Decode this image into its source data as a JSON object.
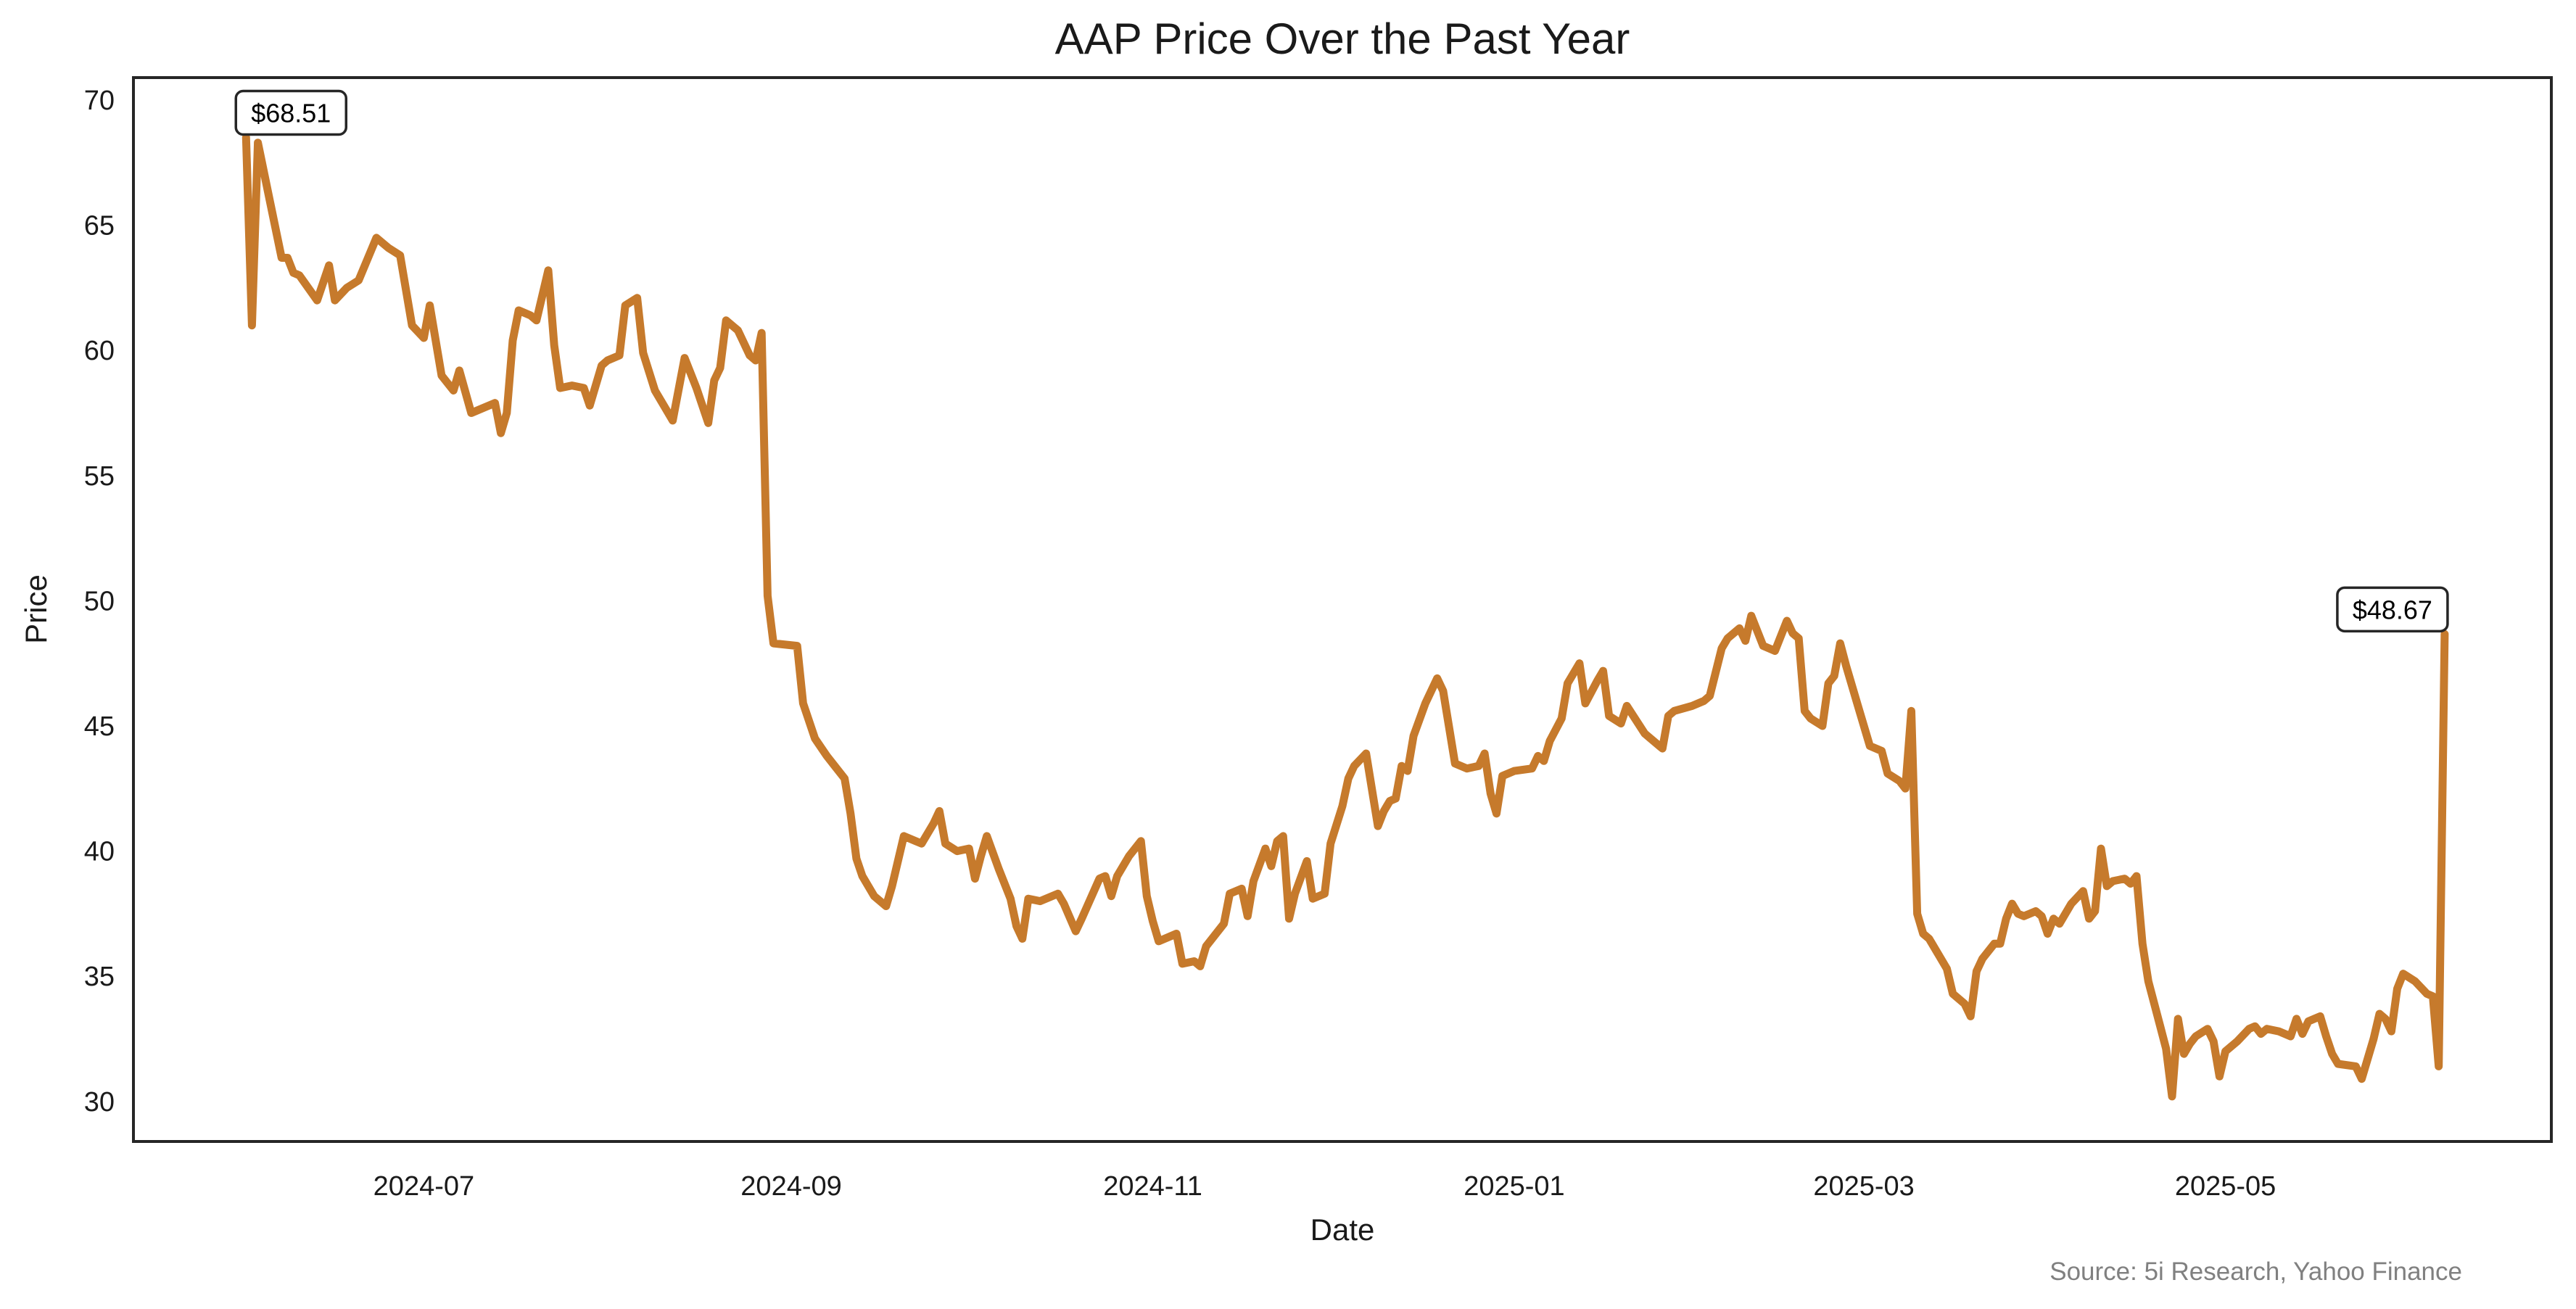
{
  "chart_data": {
    "type": "line",
    "title": "AAP Price Over the Past Year",
    "xlabel": "Date",
    "ylabel": "Price",
    "source": "Source: 5i Research, Yahoo Finance",
    "xlim": [
      "2024-05-13",
      "2025-06-25"
    ],
    "ylim": [
      28.4,
      70.9
    ],
    "x_ticks": [
      {
        "date": "2024-07-01",
        "label": "2024-07"
      },
      {
        "date": "2024-09-01",
        "label": "2024-09"
      },
      {
        "date": "2024-11-01",
        "label": "2024-11"
      },
      {
        "date": "2025-01-01",
        "label": "2025-01"
      },
      {
        "date": "2025-03-01",
        "label": "2025-03"
      },
      {
        "date": "2025-05-01",
        "label": "2025-05"
      }
    ],
    "y_ticks": [
      30,
      35,
      40,
      45,
      50,
      55,
      60,
      65,
      70
    ],
    "grid": false,
    "line_color": "#c67a2c",
    "annotations": [
      {
        "date": "2024-06-01",
        "value": 68.51,
        "label": "$68.51",
        "align": "left"
      },
      {
        "date": "2025-06-07",
        "value": 48.67,
        "label": "$48.67",
        "align": "right"
      }
    ],
    "series": [
      {
        "points": [
          [
            "2024-06-01",
            68.51
          ],
          [
            "2024-06-02",
            61.0
          ],
          [
            "2024-06-03",
            68.3
          ],
          [
            "2024-06-05",
            66.0
          ],
          [
            "2024-06-07",
            63.7
          ],
          [
            "2024-06-08",
            63.7
          ],
          [
            "2024-06-09",
            63.1
          ],
          [
            "2024-06-10",
            63.0
          ],
          [
            "2024-06-13",
            62.0
          ],
          [
            "2024-06-15",
            63.4
          ],
          [
            "2024-06-16",
            62.0
          ],
          [
            "2024-06-18",
            62.5
          ],
          [
            "2024-06-20",
            62.8
          ],
          [
            "2024-06-23",
            64.5
          ],
          [
            "2024-06-25",
            64.1
          ],
          [
            "2024-06-27",
            63.8
          ],
          [
            "2024-06-29",
            61.0
          ],
          [
            "2024-07-01",
            60.5
          ],
          [
            "2024-07-02",
            61.8
          ],
          [
            "2024-07-04",
            59.0
          ],
          [
            "2024-07-06",
            58.4
          ],
          [
            "2024-07-07",
            59.2
          ],
          [
            "2024-07-09",
            57.5
          ],
          [
            "2024-07-13",
            57.9
          ],
          [
            "2024-07-14",
            56.7
          ],
          [
            "2024-07-15",
            57.5
          ],
          [
            "2024-07-16",
            60.4
          ],
          [
            "2024-07-17",
            61.6
          ],
          [
            "2024-07-19",
            61.4
          ],
          [
            "2024-07-20",
            61.2
          ],
          [
            "2024-07-22",
            63.2
          ],
          [
            "2024-07-23",
            60.2
          ],
          [
            "2024-07-24",
            58.5
          ],
          [
            "2024-07-26",
            58.6
          ],
          [
            "2024-07-28",
            58.5
          ],
          [
            "2024-07-29",
            57.8
          ],
          [
            "2024-07-31",
            59.4
          ],
          [
            "2024-08-01",
            59.6
          ],
          [
            "2024-08-03",
            59.8
          ],
          [
            "2024-08-04",
            61.8
          ],
          [
            "2024-08-06",
            62.1
          ],
          [
            "2024-08-07",
            59.9
          ],
          [
            "2024-08-09",
            58.4
          ],
          [
            "2024-08-12",
            57.2
          ],
          [
            "2024-08-14",
            59.7
          ],
          [
            "2024-08-16",
            58.5
          ],
          [
            "2024-08-18",
            57.1
          ],
          [
            "2024-08-19",
            58.8
          ],
          [
            "2024-08-20",
            59.3
          ],
          [
            "2024-08-21",
            61.2
          ],
          [
            "2024-08-23",
            60.8
          ],
          [
            "2024-08-25",
            59.8
          ],
          [
            "2024-08-26",
            59.6
          ],
          [
            "2024-08-27",
            60.7
          ],
          [
            "2024-08-28",
            50.2
          ],
          [
            "2024-08-29",
            48.3
          ],
          [
            "2024-09-02",
            48.2
          ],
          [
            "2024-09-03",
            45.9
          ],
          [
            "2024-09-05",
            44.5
          ],
          [
            "2024-09-07",
            43.8
          ],
          [
            "2024-09-10",
            42.9
          ],
          [
            "2024-09-11",
            41.5
          ],
          [
            "2024-09-12",
            39.7
          ],
          [
            "2024-09-13",
            39.0
          ],
          [
            "2024-09-15",
            38.2
          ],
          [
            "2024-09-17",
            37.8
          ],
          [
            "2024-09-18",
            38.6
          ],
          [
            "2024-09-20",
            40.6
          ],
          [
            "2024-09-22",
            40.4
          ],
          [
            "2024-09-23",
            40.3
          ],
          [
            "2024-09-25",
            41.1
          ],
          [
            "2024-09-26",
            41.6
          ],
          [
            "2024-09-27",
            40.3
          ],
          [
            "2024-09-29",
            40.0
          ],
          [
            "2024-10-01",
            40.1
          ],
          [
            "2024-10-02",
            38.9
          ],
          [
            "2024-10-03",
            39.8
          ],
          [
            "2024-10-04",
            40.6
          ],
          [
            "2024-10-06",
            39.3
          ],
          [
            "2024-10-08",
            38.1
          ],
          [
            "2024-10-09",
            37.0
          ],
          [
            "2024-10-10",
            36.5
          ],
          [
            "2024-10-11",
            38.1
          ],
          [
            "2024-10-13",
            38.0
          ],
          [
            "2024-10-16",
            38.3
          ],
          [
            "2024-10-17",
            37.9
          ],
          [
            "2024-10-19",
            36.8
          ],
          [
            "2024-10-20",
            37.3
          ],
          [
            "2024-10-23",
            38.9
          ],
          [
            "2024-10-24",
            39.0
          ],
          [
            "2024-10-25",
            38.2
          ],
          [
            "2024-10-26",
            39.0
          ],
          [
            "2024-10-28",
            39.8
          ],
          [
            "2024-10-30",
            40.4
          ],
          [
            "2024-10-31",
            38.2
          ],
          [
            "2024-11-01",
            37.2
          ],
          [
            "2024-11-02",
            36.4
          ],
          [
            "2024-11-05",
            36.7
          ],
          [
            "2024-11-06",
            35.5
          ],
          [
            "2024-11-08",
            35.6
          ],
          [
            "2024-11-09",
            35.4
          ],
          [
            "2024-11-10",
            36.2
          ],
          [
            "2024-11-13",
            37.1
          ],
          [
            "2024-11-14",
            38.3
          ],
          [
            "2024-11-16",
            38.5
          ],
          [
            "2024-11-17",
            37.4
          ],
          [
            "2024-11-18",
            38.8
          ],
          [
            "2024-11-20",
            40.1
          ],
          [
            "2024-11-21",
            39.4
          ],
          [
            "2024-11-22",
            40.4
          ],
          [
            "2024-11-23",
            40.6
          ],
          [
            "2024-11-24",
            37.3
          ],
          [
            "2024-11-25",
            38.3
          ],
          [
            "2024-11-27",
            39.6
          ],
          [
            "2024-11-28",
            38.1
          ],
          [
            "2024-11-30",
            38.3
          ],
          [
            "2024-12-01",
            40.3
          ],
          [
            "2024-12-03",
            41.8
          ],
          [
            "2024-12-04",
            42.9
          ],
          [
            "2024-12-05",
            43.4
          ],
          [
            "2024-12-07",
            43.9
          ],
          [
            "2024-12-09",
            41.0
          ],
          [
            "2024-12-10",
            41.6
          ],
          [
            "2024-12-11",
            42.0
          ],
          [
            "2024-12-12",
            42.1
          ],
          [
            "2024-12-13",
            43.4
          ],
          [
            "2024-12-14",
            43.2
          ],
          [
            "2024-12-15",
            44.6
          ],
          [
            "2024-12-17",
            45.9
          ],
          [
            "2024-12-19",
            46.9
          ],
          [
            "2024-12-20",
            46.4
          ],
          [
            "2024-12-22",
            43.5
          ],
          [
            "2024-12-24",
            43.3
          ],
          [
            "2024-12-26",
            43.4
          ],
          [
            "2024-12-27",
            43.9
          ],
          [
            "2024-12-28",
            42.3
          ],
          [
            "2024-12-29",
            41.5
          ],
          [
            "2024-12-30",
            43.0
          ],
          [
            "2025-01-01",
            43.2
          ],
          [
            "2025-01-04",
            43.3
          ],
          [
            "2025-01-05",
            43.8
          ],
          [
            "2025-01-06",
            43.6
          ],
          [
            "2025-01-07",
            44.4
          ],
          [
            "2025-01-09",
            45.3
          ],
          [
            "2025-01-10",
            46.7
          ],
          [
            "2025-01-12",
            47.5
          ],
          [
            "2025-01-13",
            45.9
          ],
          [
            "2025-01-15",
            46.8
          ],
          [
            "2025-01-16",
            47.2
          ],
          [
            "2025-01-17",
            45.4
          ],
          [
            "2025-01-19",
            45.1
          ],
          [
            "2025-01-20",
            45.8
          ],
          [
            "2025-01-23",
            44.7
          ],
          [
            "2025-01-24",
            44.5
          ],
          [
            "2025-01-26",
            44.1
          ],
          [
            "2025-01-27",
            45.4
          ],
          [
            "2025-01-28",
            45.6
          ],
          [
            "2025-01-31",
            45.8
          ],
          [
            "2025-02-02",
            46.0
          ],
          [
            "2025-02-03",
            46.2
          ],
          [
            "2025-02-05",
            48.1
          ],
          [
            "2025-02-06",
            48.5
          ],
          [
            "2025-02-08",
            48.9
          ],
          [
            "2025-02-09",
            48.4
          ],
          [
            "2025-02-10",
            49.4
          ],
          [
            "2025-02-12",
            48.2
          ],
          [
            "2025-02-14",
            48.0
          ],
          [
            "2025-02-16",
            49.2
          ],
          [
            "2025-02-17",
            48.7
          ],
          [
            "2025-02-18",
            48.5
          ],
          [
            "2025-02-19",
            45.6
          ],
          [
            "2025-02-20",
            45.3
          ],
          [
            "2025-02-22",
            45.0
          ],
          [
            "2025-02-23",
            46.7
          ],
          [
            "2025-02-24",
            47.0
          ],
          [
            "2025-02-25",
            48.3
          ],
          [
            "2025-02-26",
            47.4
          ],
          [
            "2025-02-28",
            45.8
          ],
          [
            "2025-03-02",
            44.2
          ],
          [
            "2025-03-04",
            44.0
          ],
          [
            "2025-03-05",
            43.1
          ],
          [
            "2025-03-07",
            42.8
          ],
          [
            "2025-03-08",
            42.5
          ],
          [
            "2025-03-09",
            45.6
          ],
          [
            "2025-03-10",
            37.5
          ],
          [
            "2025-03-11",
            36.7
          ],
          [
            "2025-03-12",
            36.5
          ],
          [
            "2025-03-15",
            35.3
          ],
          [
            "2025-03-16",
            34.3
          ],
          [
            "2025-03-18",
            33.9
          ],
          [
            "2025-03-19",
            33.4
          ],
          [
            "2025-03-20",
            35.2
          ],
          [
            "2025-03-21",
            35.7
          ],
          [
            "2025-03-23",
            36.3
          ],
          [
            "2025-03-24",
            36.3
          ],
          [
            "2025-03-25",
            37.3
          ],
          [
            "2025-03-26",
            37.9
          ],
          [
            "2025-03-27",
            37.5
          ],
          [
            "2025-03-28",
            37.4
          ],
          [
            "2025-03-30",
            37.6
          ],
          [
            "2025-03-31",
            37.4
          ],
          [
            "2025-04-01",
            36.7
          ],
          [
            "2025-04-02",
            37.3
          ],
          [
            "2025-04-03",
            37.1
          ],
          [
            "2025-04-05",
            37.9
          ],
          [
            "2025-04-07",
            38.4
          ],
          [
            "2025-04-08",
            37.3
          ],
          [
            "2025-04-09",
            37.6
          ],
          [
            "2025-04-10",
            40.1
          ],
          [
            "2025-04-11",
            38.6
          ],
          [
            "2025-04-12",
            38.8
          ],
          [
            "2025-04-14",
            38.9
          ],
          [
            "2025-04-15",
            38.7
          ],
          [
            "2025-04-16",
            39.0
          ],
          [
            "2025-04-17",
            36.3
          ],
          [
            "2025-04-18",
            34.8
          ],
          [
            "2025-04-20",
            33.0
          ],
          [
            "2025-04-21",
            32.1
          ],
          [
            "2025-04-22",
            30.2
          ],
          [
            "2025-04-23",
            33.3
          ],
          [
            "2025-04-24",
            31.9
          ],
          [
            "2025-04-25",
            32.3
          ],
          [
            "2025-04-26",
            32.6
          ],
          [
            "2025-04-28",
            32.9
          ],
          [
            "2025-04-29",
            32.4
          ],
          [
            "2025-04-30",
            31.0
          ],
          [
            "2025-05-01",
            32.0
          ],
          [
            "2025-05-03",
            32.4
          ],
          [
            "2025-05-05",
            32.9
          ],
          [
            "2025-05-06",
            33.0
          ],
          [
            "2025-05-07",
            32.7
          ],
          [
            "2025-05-08",
            32.9
          ],
          [
            "2025-05-10",
            32.8
          ],
          [
            "2025-05-12",
            32.6
          ],
          [
            "2025-05-13",
            33.3
          ],
          [
            "2025-05-14",
            32.7
          ],
          [
            "2025-05-15",
            33.2
          ],
          [
            "2025-05-17",
            33.4
          ],
          [
            "2025-05-18",
            32.6
          ],
          [
            "2025-05-19",
            31.9
          ],
          [
            "2025-05-20",
            31.5
          ],
          [
            "2025-05-23",
            31.4
          ],
          [
            "2025-05-24",
            30.9
          ],
          [
            "2025-05-26",
            32.5
          ],
          [
            "2025-05-27",
            33.5
          ],
          [
            "2025-05-28",
            33.3
          ],
          [
            "2025-05-29",
            32.8
          ],
          [
            "2025-05-30",
            34.5
          ],
          [
            "2025-05-31",
            35.1
          ],
          [
            "2025-06-02",
            34.8
          ],
          [
            "2025-06-04",
            34.3
          ],
          [
            "2025-06-05",
            34.2
          ],
          [
            "2025-06-06",
            31.4
          ],
          [
            "2025-06-07",
            48.67
          ]
        ]
      }
    ]
  }
}
